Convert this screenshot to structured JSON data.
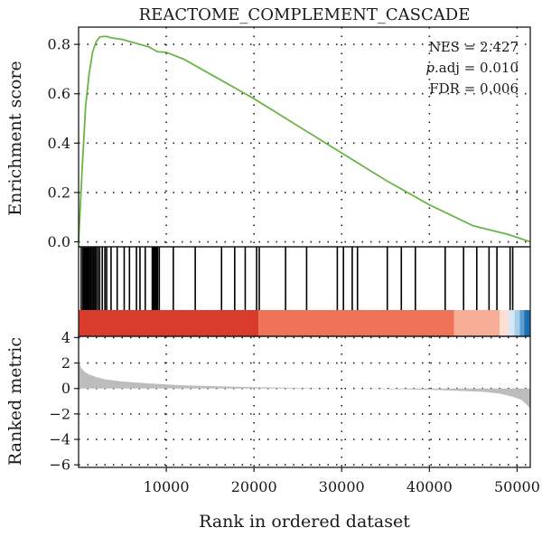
{
  "chart_data": {
    "type": "line",
    "title": "REACTOME_COMPLEMENT_CASCADE",
    "xlabel": "Rank in ordered dataset",
    "xlim": [
      0,
      51500
    ],
    "x_ticks": [
      10000,
      20000,
      30000,
      40000,
      50000
    ],
    "x_tick_labels": [
      "10000",
      "20000",
      "30000",
      "40000",
      "50000"
    ],
    "grid": true,
    "panels": {
      "enrichment": {
        "ylabel": "Enrichment score",
        "ylim": [
          -0.02,
          0.87
        ],
        "y_ticks": [
          0.0,
          0.2,
          0.4,
          0.6,
          0.8
        ],
        "y_tick_labels": [
          "0.0",
          "0.2",
          "0.4",
          "0.6",
          "0.8"
        ],
        "series": [
          {
            "color": "#6ab547",
            "x": [
              0,
              400,
              800,
              1200,
              1600,
              2000,
              2400,
              2800,
              3200,
              3600,
              4000,
              5000,
              6000,
              7000,
              8000,
              9000,
              10000,
              12000,
              14000,
              16000,
              18000,
              20000,
              25000,
              30000,
              35000,
              40000,
              45000,
              49000,
              50000,
              51500
            ],
            "y": [
              0.0,
              0.29,
              0.55,
              0.68,
              0.77,
              0.81,
              0.83,
              0.832,
              0.832,
              0.828,
              0.825,
              0.82,
              0.81,
              0.8,
              0.79,
              0.77,
              0.768,
              0.74,
              0.7,
              0.66,
              0.62,
              0.58,
              0.47,
              0.36,
              0.25,
              0.15,
              0.065,
              0.03,
              0.018,
              0.0
            ]
          }
        ],
        "annotations": [
          {
            "prefix": "",
            "italic": "",
            "suffix": "NES = 2.427"
          },
          {
            "prefix": "",
            "italic": "p",
            "suffix": ".adj = 0.010"
          },
          {
            "prefix": "",
            "italic": "",
            "suffix": "FDR = 0.006"
          }
        ]
      },
      "hits": {
        "hit_positions": [
          300,
          500,
          650,
          800,
          950,
          1100,
          1250,
          1400,
          1550,
          1700,
          1850,
          2000,
          2200,
          2400,
          2700,
          3000,
          3200,
          3700,
          4400,
          5200,
          5800,
          6600,
          7000,
          7600,
          8400,
          8500,
          8600,
          8700,
          8800,
          8900,
          9000,
          9200,
          10800,
          13300,
          16300,
          17800,
          19000,
          20300,
          20600,
          23600,
          26000,
          29500,
          30200,
          31200,
          31800,
          35200,
          36800,
          38400,
          41800,
          43900,
          45400,
          46800,
          47700,
          49200,
          49500
        ],
        "color_bands": [
          {
            "from": 0,
            "to": 20500,
            "color": "#d93b2b"
          },
          {
            "from": 20500,
            "to": 42800,
            "color": "#ee7258"
          },
          {
            "from": 42800,
            "to": 48000,
            "color": "#f7ad95"
          },
          {
            "from": 48000,
            "to": 49000,
            "color": "#fde0d3"
          },
          {
            "from": 49000,
            "to": 49700,
            "color": "#d7e7f5"
          },
          {
            "from": 49700,
            "to": 50300,
            "color": "#a9cde8"
          },
          {
            "from": 50300,
            "to": 50800,
            "color": "#5b9fd3"
          },
          {
            "from": 50800,
            "to": 51500,
            "color": "#1d6fb3"
          }
        ]
      },
      "ranked": {
        "ylabel": "Ranked metric",
        "ylim": [
          -6.2,
          4.1
        ],
        "y_ticks": [
          4,
          2,
          0,
          -2,
          -4,
          -6
        ],
        "y_tick_labels": [
          "4",
          "2",
          "0",
          "−2",
          "−4",
          "−6"
        ],
        "fill_color": "#bdbdbd",
        "x": [
          0,
          300,
          700,
          1200,
          2000,
          3000,
          5000,
          8000,
          12000,
          20000,
          30000,
          40000,
          46000,
          48000,
          49500,
          50500,
          51000,
          51500
        ],
        "y": [
          2.2,
          1.6,
          1.3,
          1.1,
          0.9,
          0.72,
          0.55,
          0.4,
          0.25,
          0.1,
          0.0,
          -0.1,
          -0.25,
          -0.4,
          -0.65,
          -0.9,
          -1.2,
          -1.6
        ]
      }
    }
  }
}
